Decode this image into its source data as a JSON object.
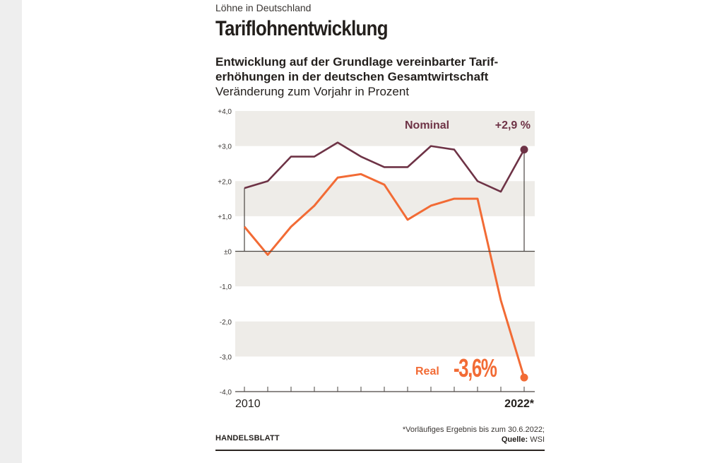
{
  "header": {
    "kicker": "Löhne in Deutschland",
    "title": "Tariflohnentwicklung",
    "subtitle_line1": "Entwicklung auf der Grundlage vereinbarter Tarif-",
    "subtitle_line2": "erhöhungen in der deutschen Gesamtwirtschaft",
    "unit": "Veränderung zum Vorjahr in Prozent"
  },
  "footer": {
    "brand": "HANDELSBLATT",
    "note": "*Vorläufiges Ergebnis bis zum 30.6.2022;",
    "source_label": "Quelle:",
    "source_value": "WSI"
  },
  "colors": {
    "nominal": "#6e3346",
    "real": "#f26b35",
    "band": "#eeece8",
    "axis": "#4a4542",
    "text": "#231f1c"
  },
  "chart_data": {
    "type": "line",
    "title": "Tariflohnentwicklung",
    "subtitle": "Entwicklung auf der Grundlage vereinbarter Tariferhöhungen in der deutschen Gesamtwirtschaft",
    "ylabel": "Veränderung zum Vorjahr in Prozent",
    "xlabel": "",
    "x": [
      2010,
      2011,
      2012,
      2013,
      2014,
      2015,
      2016,
      2017,
      2018,
      2019,
      2020,
      2021,
      2022
    ],
    "x_tick_labels": [
      "2010",
      "",
      "",
      "",
      "",
      "",
      "",
      "",
      "",
      "",
      "",
      "",
      "2022*"
    ],
    "ylim": [
      -4,
      4
    ],
    "y_ticks": [
      4,
      3,
      2,
      1,
      0,
      -1,
      -2,
      -3,
      -4
    ],
    "y_tick_labels": [
      "+4,0",
      "+3,0",
      "+2,0",
      "+1,0",
      "±0",
      "-1,0",
      "-2,0",
      "-3,0",
      "-4,0"
    ],
    "grid": "alternating horizontal bands",
    "bands": [
      [
        3,
        4
      ],
      [
        1,
        2
      ],
      [
        -1,
        0
      ],
      [
        -3,
        -2
      ]
    ],
    "series": [
      {
        "name": "Nominal",
        "values": [
          1.8,
          2.0,
          2.7,
          2.7,
          3.1,
          2.7,
          2.4,
          2.4,
          3.0,
          2.9,
          2.0,
          1.7,
          2.9
        ],
        "end_label": "+2,9 %"
      },
      {
        "name": "Real",
        "values": [
          0.7,
          -0.1,
          0.7,
          1.3,
          2.1,
          2.2,
          1.9,
          0.9,
          1.3,
          1.5,
          1.5,
          -1.4,
          -3.6
        ],
        "end_label": "-3,6%"
      }
    ],
    "legend": "inline labels near line ends"
  }
}
